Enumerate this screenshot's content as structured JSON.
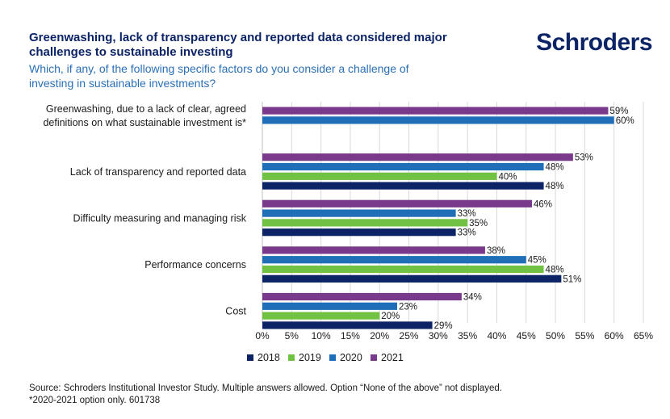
{
  "header": {
    "title": "Greenwashing, lack of transparency and reported data considered major challenges to sustainable investing",
    "subtitle": "Which, if any, of the following specific factors do you consider a challenge of investing in sustainable investments?",
    "logo": "Schroders"
  },
  "footer": {
    "source": "Source: Schroders Institutional Investor Study. Multiple answers allowed. Option “None of the above” not displayed.",
    "note": "*2020-2021 option only. 601738"
  },
  "chart_data": {
    "type": "bar",
    "orientation": "horizontal",
    "categories": [
      "Greenwashing, due to a lack of clear, agreed definitions on what sustainable investment is*",
      "Lack of transparency and reported data",
      "Difficulty measuring and managing risk",
      "Performance concerns",
      "Cost"
    ],
    "category_lines": [
      [
        "Greenwashing, due to a lack of clear, agreed",
        "definitions on what sustainable investment is*"
      ],
      [
        "Lack of transparency and reported data"
      ],
      [
        "Difficulty measuring and managing risk"
      ],
      [
        "Performance concerns"
      ],
      [
        "Cost"
      ]
    ],
    "series": [
      {
        "name": "2021",
        "color": "#7a3a8c",
        "values": [
          59,
          53,
          46,
          38,
          34
        ]
      },
      {
        "name": "2020",
        "color": "#1f6fb8",
        "values": [
          60,
          48,
          33,
          45,
          23
        ]
      },
      {
        "name": "2019",
        "color": "#71c143",
        "values": [
          null,
          40,
          35,
          48,
          20
        ]
      },
      {
        "name": "2018",
        "color": "#0c2366",
        "values": [
          null,
          48,
          33,
          51,
          29
        ]
      }
    ],
    "legend_order": [
      "2018",
      "2019",
      "2020",
      "2021"
    ],
    "legend_position": "bottom",
    "xlim": [
      0,
      65
    ],
    "xticks": [
      0,
      5,
      10,
      15,
      20,
      25,
      30,
      35,
      40,
      45,
      50,
      55,
      60,
      65
    ],
    "value_suffix": "%",
    "grid": "vertical"
  }
}
